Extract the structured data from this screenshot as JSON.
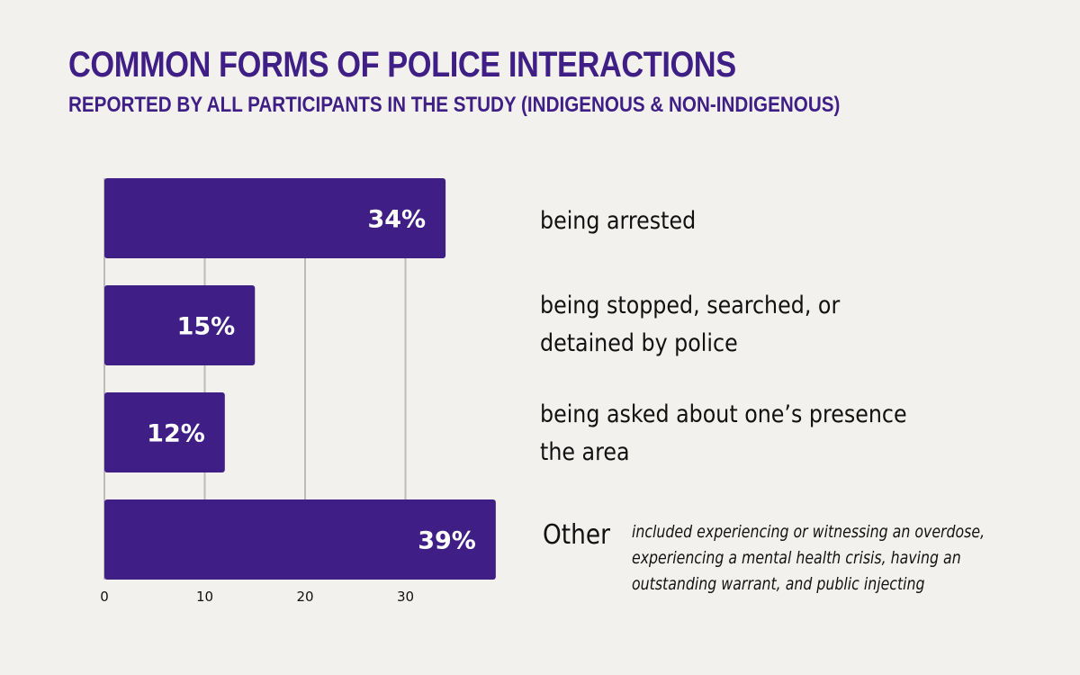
{
  "header": {
    "title": "COMMON FORMS OF POLICE INTERACTIONS",
    "subtitle": "REPORTED BY ALL PARTICIPANTS IN THE STUDY (INDIGENOUS & NON-INDIGENOUS)"
  },
  "labels": {
    "row1": "being arrested",
    "row2_line1": "being stopped, searched, or",
    "row2_line2": "detained by police",
    "row3_line1": "being asked about one’s presence",
    "row3_line2": "the area",
    "row4": "Other",
    "row4_note": "included experiencing or witnessing an overdose, experiencing a mental health crisis, having an outstanding warrant, and public injecting"
  },
  "colors": {
    "bar": "#3f1f86",
    "title": "#3f1f86",
    "background": "#f2f1ee"
  },
  "chart_data": {
    "type": "bar",
    "orientation": "horizontal",
    "categories": [
      "being arrested",
      "being stopped, searched, or detained by police",
      "being asked about one’s presence the area",
      "Other"
    ],
    "values": [
      34,
      15,
      12,
      39
    ],
    "data_labels": [
      "34%",
      "15%",
      "12%",
      "39%"
    ],
    "title": "COMMON FORMS OF POLICE INTERACTIONS",
    "subtitle": "REPORTED BY ALL PARTICIPANTS IN THE STUDY (INDIGENOUS & NON-INDIGENOUS)",
    "xlabel": "",
    "ylabel": "",
    "xlim": [
      0,
      39
    ],
    "xticks": [
      0,
      10,
      20,
      30
    ],
    "grid": true,
    "legend": "none"
  }
}
